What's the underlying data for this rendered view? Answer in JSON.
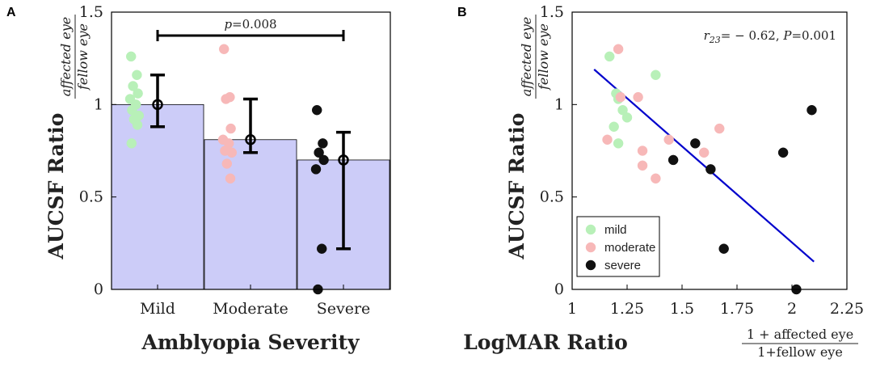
{
  "chart_data": [
    {
      "panel": "A",
      "type": "bar",
      "categories": [
        "Mild",
        "Moderate",
        "Severe"
      ],
      "values": [
        1.0,
        0.81,
        0.7
      ],
      "error_low": [
        0.88,
        0.74,
        0.22
      ],
      "error_high": [
        1.16,
        1.03,
        0.85
      ],
      "points": {
        "Mild": [
          1.26,
          1.16,
          1.1,
          1.06,
          1.03,
          1.0,
          0.97,
          0.94,
          0.92,
          0.89,
          0.79
        ],
        "Moderate": [
          1.3,
          1.04,
          1.03,
          0.87,
          0.81,
          0.79,
          0.75,
          0.74,
          0.68,
          0.6
        ],
        "Severe": [
          0.97,
          0.79,
          0.74,
          0.7,
          0.65,
          0.22,
          0.0
        ]
      },
      "point_colors": {
        "Mild": "#b8f0b8",
        "Moderate": "#f7b8b8",
        "Severe": "#111111"
      },
      "bar_color": "#ccccf8",
      "ylim": [
        0,
        1.5
      ],
      "yticks": [
        "0",
        "0.5",
        "1",
        "1.5"
      ],
      "ylabel": "AUCSF Ratio",
      "ylabel_frac": {
        "numerator": "affected eye",
        "denominator": "fellow eye"
      },
      "xlabel": "Amblyopia Severity",
      "annotation": "p=0.008"
    },
    {
      "panel": "B",
      "type": "scatter",
      "series": [
        {
          "name": "mild",
          "color": "#b8f0b8",
          "points": [
            [
              1.17,
              1.26
            ],
            [
              1.19,
              0.88
            ],
            [
              1.2,
              1.06
            ],
            [
              1.21,
              1.03
            ],
            [
              1.21,
              0.79
            ],
            [
              1.23,
              0.97
            ],
            [
              1.25,
              0.93
            ],
            [
              1.38,
              1.16
            ]
          ]
        },
        {
          "name": "moderate",
          "color": "#f7b8b8",
          "points": [
            [
              1.16,
              0.81
            ],
            [
              1.21,
              1.3
            ],
            [
              1.22,
              1.04
            ],
            [
              1.3,
              1.04
            ],
            [
              1.32,
              0.75
            ],
            [
              1.32,
              0.67
            ],
            [
              1.38,
              0.6
            ],
            [
              1.44,
              0.81
            ],
            [
              1.6,
              0.74
            ],
            [
              1.67,
              0.87
            ]
          ]
        },
        {
          "name": "severe",
          "color": "#111111",
          "points": [
            [
              1.46,
              0.7
            ],
            [
              1.56,
              0.79
            ],
            [
              1.63,
              0.65
            ],
            [
              1.69,
              0.22
            ],
            [
              1.96,
              0.74
            ],
            [
              2.02,
              0.0
            ],
            [
              2.09,
              0.97
            ]
          ]
        }
      ],
      "fit_line": {
        "x": [
          1.1,
          2.1
        ],
        "y": [
          1.19,
          0.15
        ],
        "color": "#0000cc"
      },
      "xlim": [
        1,
        2.25
      ],
      "ylim": [
        0,
        1.5
      ],
      "xticks": [
        "1",
        "1.25",
        "1.5",
        "1.75",
        "2",
        "2.25"
      ],
      "yticks": [
        "0",
        "0.5",
        "1",
        "1.5"
      ],
      "ylabel": "AUCSF Ratio",
      "ylabel_frac": {
        "numerator": "affected eye",
        "denominator": "fellow eye"
      },
      "xlabel": "LogMAR Ratio",
      "xlabel_frac": {
        "numerator": "1 + affected eye",
        "denominator": "1+fellow eye"
      },
      "annotation": "r23= − 0.62, P=0.001",
      "legend_position": "bottom-left"
    }
  ],
  "panel_a": {
    "letter": "A",
    "p_label": "p",
    "p_value": "=0.008"
  },
  "panel_b": {
    "letter": "B",
    "r_label": "r",
    "r_sub": "23",
    "r_value": "= − 0.62, ",
    "P_label": "P",
    "P_value": "=0.001"
  }
}
